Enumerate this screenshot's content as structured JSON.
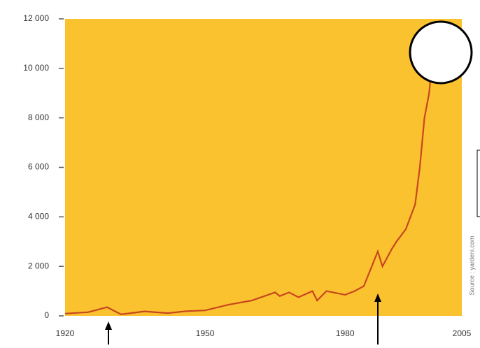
{
  "chart_data": {
    "type": "line",
    "x": [
      1920,
      1925,
      1929,
      1932,
      1937,
      1942,
      1946,
      1950,
      1955,
      1960,
      1965,
      1966,
      1968,
      1970,
      1973,
      1974,
      1976,
      1980,
      1982,
      1984,
      1987,
      1988,
      1990,
      1991,
      1993,
      1995,
      1996,
      1997,
      1998,
      1999,
      2000
    ],
    "series": [
      {
        "color": "#c8461e",
        "values": [
          90,
          150,
          350,
          60,
          180,
          110,
          190,
          220,
          450,
          620,
          950,
          800,
          950,
          750,
          1000,
          620,
          1000,
          850,
          1000,
          1200,
          2600,
          2000,
          2700,
          3000,
          3500,
          4500,
          6000,
          8000,
          9000,
          11000,
          11500
        ]
      }
    ],
    "xlim": [
      1920,
      2005
    ],
    "xticks": [
      1920,
      1950,
      1980,
      2005
    ],
    "ylim": [
      0,
      12000
    ],
    "yticks": [
      0,
      {
        "value": 2000,
        "label": "2 000"
      },
      {
        "value": 4000,
        "label": "4 000"
      },
      {
        "value": 6000,
        "label": "6 000"
      },
      {
        "value": 8000,
        "label": "8 000"
      },
      {
        "value": 10000,
        "label": "10 000"
      },
      {
        "value": 12000,
        "label": "12 000"
      }
    ],
    "background": "#fbc22f",
    "source": "Source : yardeni.com"
  }
}
